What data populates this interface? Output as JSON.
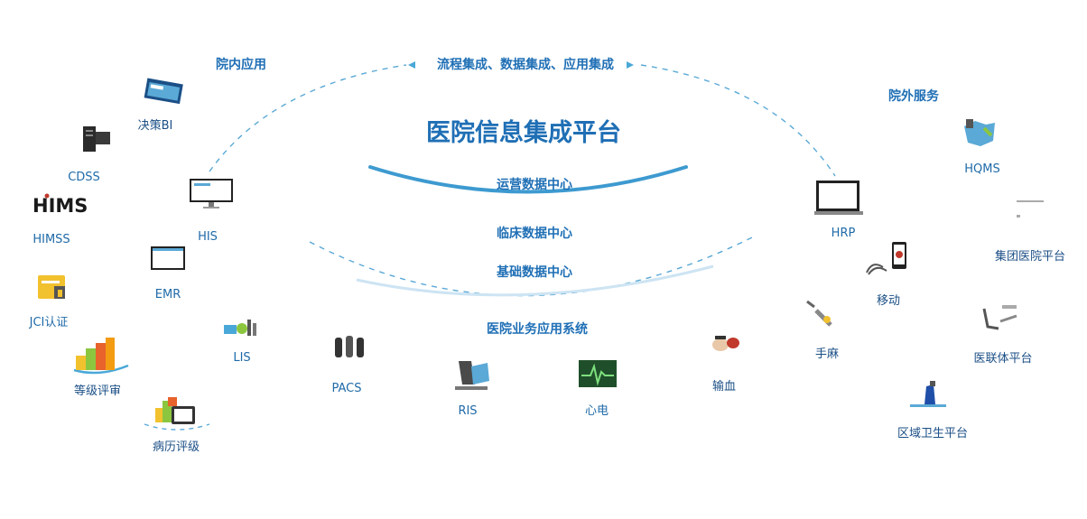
{
  "title": "医院信息集成平台",
  "integration_label": "流程集成、数据集成、应用集成",
  "sections": {
    "inner": "院内应用",
    "outer": "院外服务",
    "business": "医院业务应用系统"
  },
  "data_centers": [
    "运营数据中心",
    "临床数据中心",
    "基础数据中心"
  ],
  "inner_nodes": [
    {
      "name": "node-bi",
      "label": "决策BI",
      "icon": "window-icon"
    },
    {
      "name": "node-cdss",
      "label": "CDSS",
      "icon": "server-icon"
    },
    {
      "name": "node-himss",
      "label": "HIMSS",
      "icon": "himss-logo-icon"
    },
    {
      "name": "node-jci",
      "label": "JCI认证",
      "icon": "certificate-icon"
    },
    {
      "name": "node-grade",
      "label": "等级评审",
      "icon": "bar-chart-icon"
    },
    {
      "name": "node-emr-grade",
      "label": "病历评级",
      "icon": "document-icon"
    },
    {
      "name": "node-his",
      "label": "HIS",
      "icon": "monitor-icon"
    },
    {
      "name": "node-emr",
      "label": "EMR",
      "icon": "screen-icon"
    },
    {
      "name": "node-lis",
      "label": "LIS",
      "icon": "lab-icon"
    }
  ],
  "business_nodes": [
    {
      "name": "node-pacs",
      "label": "PACS",
      "icon": "xray-icon"
    },
    {
      "name": "node-ris",
      "label": "RIS",
      "icon": "scanner-icon"
    },
    {
      "name": "node-ecg",
      "label": "心电",
      "icon": "ecg-icon"
    },
    {
      "name": "node-blood",
      "label": "输血",
      "icon": "blood-icon"
    }
  ],
  "outer_nodes": [
    {
      "name": "node-hrp",
      "label": "HRP",
      "icon": "laptop-icon"
    },
    {
      "name": "node-mobile",
      "label": "移动",
      "icon": "phone-icon"
    },
    {
      "name": "node-anesthesia",
      "label": "手麻",
      "icon": "syringe-icon"
    },
    {
      "name": "node-hqms",
      "label": "HQMS",
      "icon": "map-icon"
    },
    {
      "name": "node-group",
      "label": "集团医院平台",
      "icon": "building-icon"
    },
    {
      "name": "node-alliance",
      "label": "医联体平台",
      "icon": "alliance-icon"
    },
    {
      "name": "node-regional",
      "label": "区域卫生平台",
      "icon": "region-icon"
    }
  ],
  "colors": {
    "primary": "#1f6fb5",
    "accent": "#4aa8d8",
    "dash": "#5aa9d6"
  }
}
